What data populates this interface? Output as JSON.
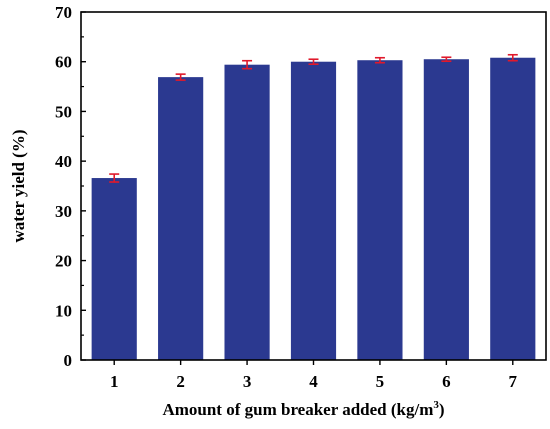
{
  "chart_data": {
    "type": "bar",
    "title": "",
    "xlabel": "Amount of gum breaker added (kg/m",
    "xlabel_superscript": "3",
    "xlabel_suffix": ")",
    "ylabel": "water yield (%)",
    "categories": [
      "1",
      "2",
      "3",
      "4",
      "5",
      "6",
      "7"
    ],
    "values": [
      36.6,
      56.9,
      59.4,
      60.0,
      60.3,
      60.5,
      60.8
    ],
    "errors": [
      0.8,
      0.6,
      0.8,
      0.5,
      0.5,
      0.4,
      0.6
    ],
    "ylim": [
      0,
      70
    ],
    "yticks": [
      0,
      10,
      20,
      30,
      40,
      50,
      60,
      70
    ],
    "grid": false,
    "bar_color": "#2b3990",
    "error_bar_color": "#e0192b",
    "axis_color": "#000000"
  }
}
